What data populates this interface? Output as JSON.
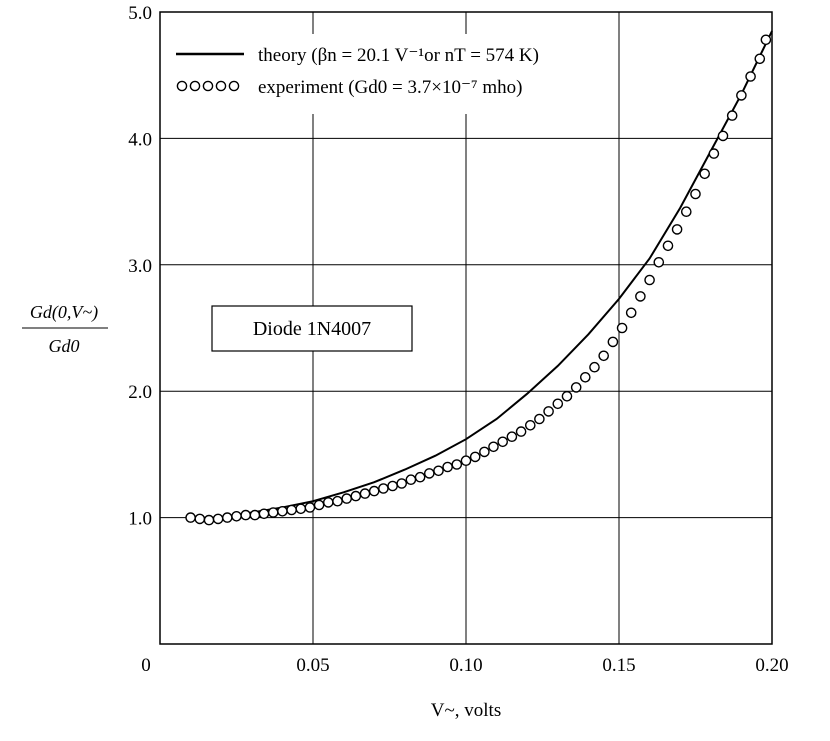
{
  "chart_data": {
    "type": "line",
    "xlabel": "V~, volts",
    "ylabel": "Gd(0,V~) / Gd0",
    "xlim": [
      0,
      0.2
    ],
    "ylim": [
      0,
      5.0
    ],
    "grid": true,
    "legend_placement": "top-left",
    "x_ticks": [
      "0",
      "0.05",
      "0.10",
      "0.15",
      "0.20"
    ],
    "y_ticks": [
      "1.0",
      "2.0",
      "3.0",
      "4.0",
      "5.0"
    ],
    "annotation": "Diode 1N4007",
    "series": [
      {
        "name": "theory (βn = 20.1 V⁻¹or nT = 574 K)",
        "style": "line",
        "x": [
          0.01,
          0.02,
          0.03,
          0.04,
          0.05,
          0.06,
          0.07,
          0.08,
          0.09,
          0.1,
          0.11,
          0.12,
          0.13,
          0.14,
          0.15,
          0.16,
          0.17,
          0.18,
          0.19,
          0.2
        ],
        "y": [
          1.0,
          1.0,
          1.04,
          1.08,
          1.13,
          1.2,
          1.28,
          1.38,
          1.49,
          1.62,
          1.78,
          1.98,
          2.2,
          2.45,
          2.73,
          3.05,
          3.45,
          3.9,
          4.35,
          4.85
        ]
      },
      {
        "name": "experiment (Gd0 = 3.7×10⁻⁷ mho)",
        "style": "markers",
        "x": [
          0.01,
          0.013,
          0.016,
          0.019,
          0.022,
          0.025,
          0.028,
          0.031,
          0.034,
          0.037,
          0.04,
          0.043,
          0.046,
          0.049,
          0.052,
          0.055,
          0.058,
          0.061,
          0.064,
          0.067,
          0.07,
          0.073,
          0.076,
          0.079,
          0.082,
          0.085,
          0.088,
          0.091,
          0.094,
          0.097,
          0.1,
          0.103,
          0.106,
          0.109,
          0.112,
          0.115,
          0.118,
          0.121,
          0.124,
          0.127,
          0.13,
          0.133,
          0.136,
          0.139,
          0.142,
          0.145,
          0.148,
          0.151,
          0.154,
          0.157,
          0.16,
          0.163,
          0.166,
          0.169,
          0.172,
          0.175,
          0.178,
          0.181,
          0.184,
          0.187,
          0.19,
          0.193,
          0.196,
          0.198
        ],
        "y": [
          1.0,
          0.99,
          0.98,
          0.99,
          1.0,
          1.01,
          1.02,
          1.02,
          1.03,
          1.04,
          1.05,
          1.06,
          1.07,
          1.08,
          1.1,
          1.12,
          1.13,
          1.15,
          1.17,
          1.19,
          1.21,
          1.23,
          1.25,
          1.27,
          1.3,
          1.32,
          1.35,
          1.37,
          1.4,
          1.42,
          1.45,
          1.48,
          1.52,
          1.56,
          1.6,
          1.64,
          1.68,
          1.73,
          1.78,
          1.84,
          1.9,
          1.96,
          2.03,
          2.11,
          2.19,
          2.28,
          2.39,
          2.5,
          2.62,
          2.75,
          2.88,
          3.02,
          3.15,
          3.28,
          3.42,
          3.56,
          3.72,
          3.88,
          4.02,
          4.18,
          4.34,
          4.49,
          4.63,
          4.78
        ]
      }
    ]
  }
}
